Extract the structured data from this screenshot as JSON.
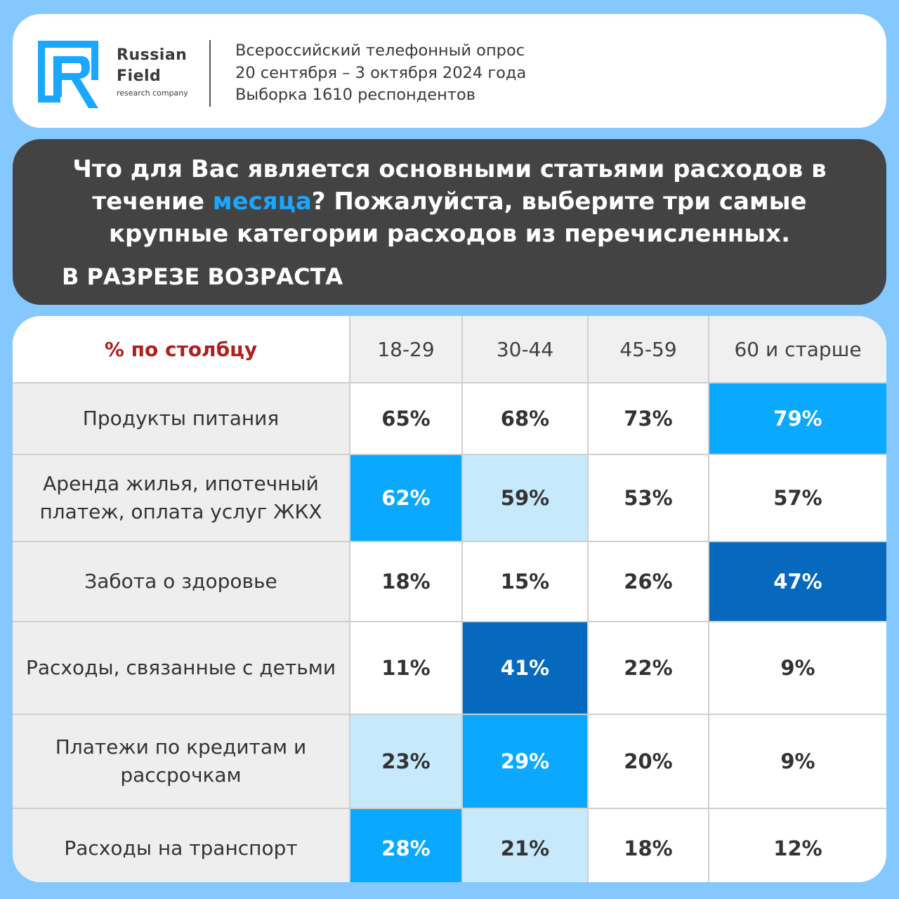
{
  "brand": {
    "name_line1": "Russian",
    "name_line2": "Field",
    "tagline": "research company",
    "color": "#1aa7ff"
  },
  "survey": {
    "line1": "Всероссийский телефонный опрос",
    "line2": "20 сентября – 3 октября 2024 года",
    "line3": "Выборка 1610 респондентов"
  },
  "question": {
    "part1": "Что для Вас является основными статьями расходов в течение ",
    "highlight": "месяца",
    "part2": "? Пожалуйста, выберите три самые крупные категории расходов из перечисленных.",
    "subtitle": "В РАЗРЕЗЕ ВОЗРАСТА"
  },
  "chart_data": {
    "type": "table",
    "corner_label": "% по столбцу",
    "columns": [
      "18-29",
      "30-44",
      "45-59",
      "60 и старше"
    ],
    "unit": "%",
    "rows": [
      {
        "label": "Продукты питания",
        "values": [
          65,
          68,
          73,
          79
        ],
        "display": [
          "65%",
          "68%",
          "73%",
          "79%"
        ],
        "highlight": [
          "none",
          "none",
          "none",
          "mid"
        ]
      },
      {
        "label": "Аренда жилья, ипотечный платеж,  оплата услуг ЖКХ",
        "values": [
          62,
          59,
          53,
          57
        ],
        "display": [
          "62%",
          "59%",
          "53%",
          "57%"
        ],
        "highlight": [
          "mid",
          "light",
          "none",
          "none"
        ]
      },
      {
        "label": "Забота о здоровье",
        "values": [
          18,
          15,
          26,
          47
        ],
        "display": [
          "18%",
          "15%",
          "26%",
          "47%"
        ],
        "highlight": [
          "none",
          "none",
          "none",
          "dark"
        ]
      },
      {
        "label": "Расходы, связанные с детьми",
        "values": [
          11,
          41,
          22,
          9
        ],
        "display": [
          "11%",
          "41%",
          "22%",
          "9%"
        ],
        "highlight": [
          "none",
          "dark",
          "none",
          "none"
        ]
      },
      {
        "label": "Платежи по кредитам и рассрочкам",
        "values": [
          23,
          29,
          20,
          9
        ],
        "display": [
          "23%",
          "29%",
          "20%",
          "9%"
        ],
        "highlight": [
          "light",
          "mid",
          "none",
          "none"
        ]
      },
      {
        "label": "Расходы на транспорт",
        "values": [
          28,
          21,
          18,
          12
        ],
        "display": [
          "28%",
          "21%",
          "18%",
          "12%"
        ],
        "highlight": [
          "mid",
          "light",
          "none",
          "none"
        ]
      }
    ],
    "colors": {
      "light": "#c6e9fb",
      "mid": "#0aa9ff",
      "dark": "#0669bd",
      "label_bg": "#eeeeee",
      "corner_text": "#b01e1e"
    }
  }
}
